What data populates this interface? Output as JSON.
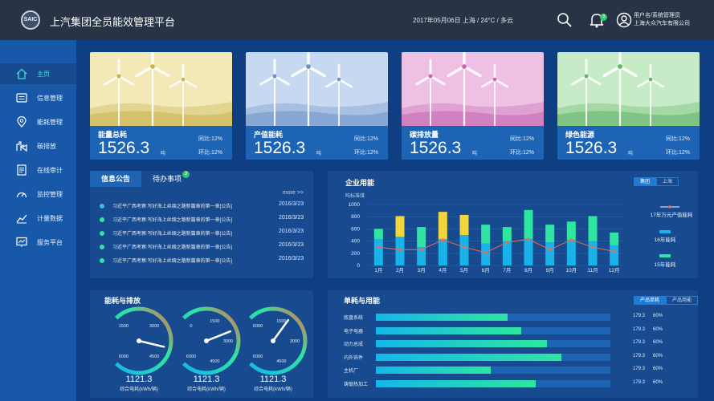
{
  "header": {
    "logo_text": "SAIC",
    "title": "上汽集团全员能效管理平台",
    "date_weather": "2017年05月06日  上海 / 24°C / 多云",
    "notification_count": "3",
    "user_line1": "用户名/系统管理员",
    "user_line2": "上海大众汽车有限公司"
  },
  "sidebar": {
    "items": [
      {
        "label": "主页",
        "icon": "home-icon"
      },
      {
        "label": "信息管理",
        "icon": "info-list-icon"
      },
      {
        "label": "能耗管理",
        "icon": "location-pin-icon"
      },
      {
        "label": "碳排放",
        "icon": "factory-icon"
      },
      {
        "label": "在线审计",
        "icon": "document-icon"
      },
      {
        "label": "监控管理",
        "icon": "monitor-gauge-icon"
      },
      {
        "label": "计量数据",
        "icon": "trend-chart-icon"
      },
      {
        "label": "服务平台",
        "icon": "service-screen-icon"
      }
    ]
  },
  "cards": [
    {
      "title": "能量总耗",
      "value": "1526.3",
      "unit": "吨",
      "yoy": "同比:12%",
      "mom": "环比:12%",
      "color": "#f3e9b7",
      "accent": "#c8b04a"
    },
    {
      "title": "产值能耗",
      "value": "1526.3",
      "unit": "吨",
      "yoy": "同比:12%",
      "mom": "环比:12%",
      "color": "#c7d9f0",
      "accent": "#6d93c9"
    },
    {
      "title": "碳排放量",
      "value": "1526.3",
      "unit": "吨",
      "yoy": "同比:12%",
      "mom": "环比:12%",
      "color": "#eec1e4",
      "accent": "#c468b0"
    },
    {
      "title": "绿色能源",
      "value": "1526.3",
      "unit": "吨",
      "yoy": "同比:12%",
      "mom": "环比:12%",
      "color": "#c8ebc7",
      "accent": "#62b468"
    }
  ],
  "notices": {
    "tab_active": "信息公告",
    "tab_other": "待办事项",
    "todo_count": "3",
    "more": "more >>",
    "rows": [
      {
        "text": "习近平广西考察:写好海上丝绸之路新篇章的第一章[公告]",
        "date": "2016/3/23",
        "dot": "#3fb6f0"
      },
      {
        "text": "习近平广西考察:写好海上丝绸之路新篇章的第一章[公告]",
        "date": "2016/3/23",
        "dot": "#2ee6a0"
      },
      {
        "text": "习近平广西考察:写好海上丝绸之路新篇章的第一章[公告]",
        "date": "2016/3/23",
        "dot": "#2ee6a0"
      },
      {
        "text": "习近平广西考察:写好海上丝绸之路新篇章的第一章[公告]",
        "date": "2016/3/23",
        "dot": "#2ee6a0"
      },
      {
        "text": "习近平广西考察:写好海上丝绸之路新篇章的第一章[公告]",
        "date": "2016/3/23",
        "dot": "#2ee6a0"
      }
    ]
  },
  "enterprise": {
    "title": "企业用能",
    "seg_on": "集团",
    "seg_off": "上海",
    "legend_line": "17年万元产值能耗",
    "legend_bar1": "16年能耗",
    "legend_bar2": "15年能耗"
  },
  "gauges": {
    "title": "能耗与排放",
    "items": [
      {
        "value": "1121.3",
        "label": "综合电耗(kWh/辆)",
        "ticks": [
          "1500",
          "3000",
          "4500",
          "6000"
        ],
        "level": 0.55
      },
      {
        "value": "1121.3",
        "label": "综合电耗(kWh/辆)",
        "ticks": [
          "0",
          "1500",
          "3000",
          "4500",
          "6000"
        ],
        "level": 0.42
      },
      {
        "value": "1121.3",
        "label": "综合电耗(kWh/辆)",
        "ticks": [
          "6000",
          "1500",
          "3000",
          "4500",
          "6000"
        ],
        "level": 0.3
      }
    ]
  },
  "unitenergy": {
    "title": "单耗与用能",
    "seg_on": "产品单耗",
    "seg_off": "产品用能",
    "rows": [
      {
        "label": "底盘系统",
        "fill": 0.56,
        "v1": "179.3",
        "v2": "60%"
      },
      {
        "label": "电子电器",
        "fill": 0.62,
        "v1": "179.3",
        "v2": "60%"
      },
      {
        "label": "动力总成",
        "fill": 0.73,
        "v1": "179.3",
        "v2": "60%"
      },
      {
        "label": "内外饰件",
        "fill": 0.79,
        "v1": "179.3",
        "v2": "60%"
      },
      {
        "label": "主机厂",
        "fill": 0.49,
        "v1": "179.3",
        "v2": "60%"
      },
      {
        "label": "铸锻热加工",
        "fill": 0.68,
        "v1": "179.3",
        "v2": "60%"
      }
    ]
  },
  "chart_data": {
    "type": "bar",
    "ylabel": "吨标准煤",
    "ylim": [
      0,
      1000
    ],
    "yticks": [
      "0",
      "200",
      "400",
      "600",
      "800",
      "1000"
    ],
    "categories": [
      "1月",
      "2月",
      "3月",
      "4月",
      "5月",
      "6月",
      "7月",
      "8月",
      "9月",
      "10月",
      "11月",
      "12月"
    ],
    "series": [
      {
        "name": "16年能耗",
        "values": [
          430,
          470,
          300,
          430,
          500,
          360,
          400,
          440,
          380,
          420,
          400,
          330
        ],
        "color": "#19b3ea"
      },
      {
        "name": "15年能耗",
        "values": [
          170,
          340,
          330,
          450,
          330,
          310,
          230,
          470,
          290,
          300,
          410,
          210
        ],
        "color": "#2ee6a0",
        "color_alt": "#f2d53c"
      },
      {
        "name": "17年万元产值能耗",
        "values": [
          300,
          260,
          260,
          420,
          300,
          210,
          380,
          430,
          260,
          420,
          300,
          230
        ],
        "color": "#f06a4f"
      }
    ]
  }
}
